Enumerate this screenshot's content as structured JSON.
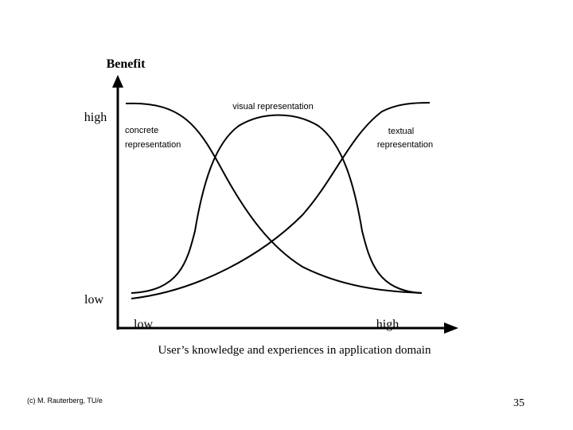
{
  "y_axis": {
    "title": "Benefit",
    "high": "high",
    "low": "low"
  },
  "x_axis": {
    "title": "User’s knowledge and experiences in application domain",
    "low": "low",
    "high": "high"
  },
  "curves": {
    "visual": "visual  representation",
    "concrete_1": "concrete",
    "concrete_2": "representation",
    "textual_1": "textual",
    "textual_2": "representation"
  },
  "footer": {
    "credit": "(c) M. Rauterberg, TU/e",
    "page": "35"
  }
}
